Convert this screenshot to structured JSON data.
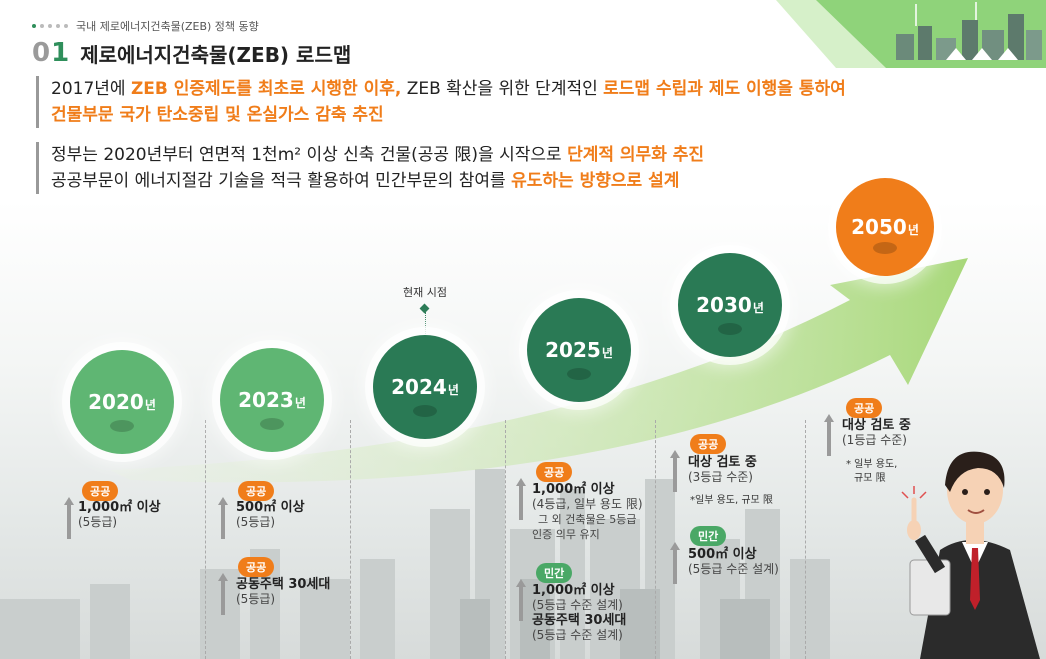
{
  "breadcrumb": "국내 제로에너지건축물(ZEB) 정책 동향",
  "section_number_prefix": "0",
  "section_number_digit": "1",
  "section_title": "제로에너지건축물(ZEB) 로드맵",
  "para1": {
    "t1": "2017년에 ",
    "h1": "ZEB 인증제도를 최초로 시행한 이후,",
    "t2": " ZEB 확산을 위한 단계적인 ",
    "h2": "로드맵 수립과 제도 이행을 통하여",
    "h3": "건물부문 국가 탄소중립 및 온실가스 감축 추진"
  },
  "para2": {
    "t1": "정부는 2020년부터 연면적 1천m² 이상 신축 건물(공공 限)을 시작으로 ",
    "h1": "단계적 의무화 추진",
    "t2": "공공부문이 에너지절감 기술을 적극 활용하여 민간부문의 참여를 ",
    "h2": "유도하는 방향으로 설계"
  },
  "current_point_label": "현재 시점",
  "year_suffix": "년",
  "milestones": [
    {
      "year": "2020",
      "items": [
        {
          "badge": "공공",
          "main": "1,000㎡ 이상",
          "sub": "(5등급)"
        }
      ]
    },
    {
      "year": "2023",
      "items": [
        {
          "badge": "공공",
          "main": "500㎡ 이상",
          "sub": "(5등급)"
        },
        {
          "badge": "공공",
          "main": "공동주택 30세대",
          "sub": "(5등급)"
        }
      ]
    },
    {
      "year": "2024",
      "items": []
    },
    {
      "year": "2025",
      "items": [
        {
          "badge": "공공",
          "main": "1,000㎡ 이상",
          "sub": "(4등급, 일부 용도 限)",
          "extra1": "그 외 건축물은 5등급",
          "extra2": "인증 의무 유지"
        },
        {
          "badge": "민간",
          "main": "1,000㎡ 이상",
          "sub": "(5등급 수준 설계)",
          "main2": "공동주택 30세대",
          "sub2": "(5등급 수준 설계)"
        }
      ]
    },
    {
      "year": "2030",
      "items": [
        {
          "badge": "공공",
          "main": "대상 검토 중",
          "sub": "(3등급 수준)",
          "note": "*일부 용도, 규모 限"
        },
        {
          "badge": "민간",
          "main": "500㎡ 이상",
          "sub": "(5등급 수준 설계)"
        }
      ]
    },
    {
      "year": "2050",
      "items": [
        {
          "badge": "공공",
          "main": "대상 검토 중",
          "sub": "(1등급 수준)",
          "note1": "* 일부 용도,",
          "note2": "규모 限"
        }
      ]
    }
  ],
  "colors": {
    "accent_orange": "#f07d1a",
    "green_dark": "#2a7a55",
    "green_light": "#5fb673",
    "arrow_green": "#b9df8a"
  }
}
